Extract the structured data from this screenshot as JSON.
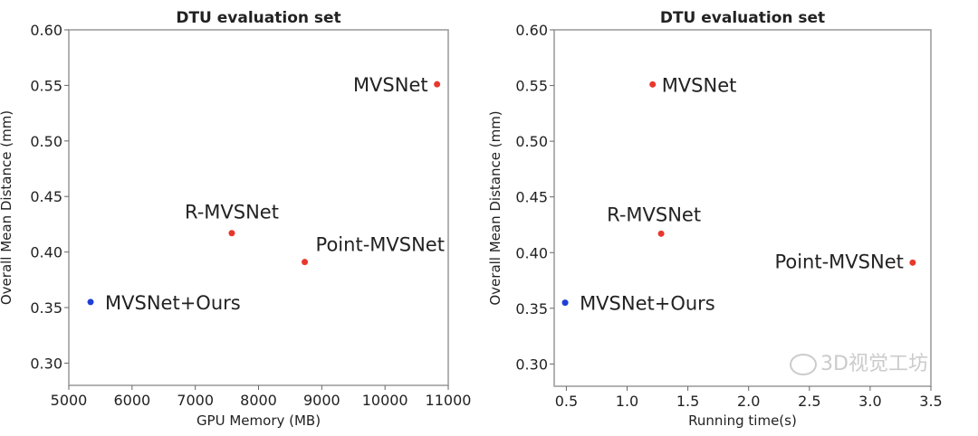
{
  "chart_data": [
    {
      "type": "scatter",
      "title": "DTU evaluation set",
      "xlabel": "GPU Memory (MB)",
      "ylabel": "Overall Mean Distance (mm)",
      "xlim": [
        5000,
        11000
      ],
      "ylim": [
        0.28,
        0.6
      ],
      "xticks": [
        "5000",
        "6000",
        "7000",
        "8000",
        "9000",
        "10000",
        "11000"
      ],
      "yticks": [
        "0.30",
        "0.35",
        "0.40",
        "0.45",
        "0.50",
        "0.55",
        "0.60"
      ],
      "grid": false,
      "points": [
        {
          "label": "MVSNet",
          "x": 10823,
          "y": 0.551,
          "color": "#e8372c"
        },
        {
          "label": "R-MVSNet",
          "x": 7577,
          "y": 0.417,
          "color": "#e8372c"
        },
        {
          "label": "Point-MVSNet",
          "x": 8731,
          "y": 0.391,
          "color": "#e8372c"
        },
        {
          "label": "MVSNet+Ours",
          "x": 5344,
          "y": 0.355,
          "color": "#1f3fd6"
        }
      ]
    },
    {
      "type": "scatter",
      "title": "DTU evaluation set",
      "xlabel": "Running time(s)",
      "ylabel": "Overall Mean Distance (mm)",
      "xlim": [
        0.4,
        3.5
      ],
      "ylim": [
        0.28,
        0.6
      ],
      "xticks": [
        "0.5",
        "1.0",
        "1.5",
        "2.0",
        "2.5",
        "3.0",
        "3.5"
      ],
      "yticks": [
        "0.30",
        "0.35",
        "0.40",
        "0.45",
        "0.50",
        "0.55",
        "0.60"
      ],
      "grid": false,
      "points": [
        {
          "label": "MVSNet",
          "x": 1.21,
          "y": 0.551,
          "color": "#e8372c"
        },
        {
          "label": "R-MVSNet",
          "x": 1.28,
          "y": 0.417,
          "color": "#e8372c"
        },
        {
          "label": "Point-MVSNet",
          "x": 3.35,
          "y": 0.391,
          "color": "#e8372c"
        },
        {
          "label": "MVSNet+Ours",
          "x": 0.49,
          "y": 0.355,
          "color": "#1f3fd6"
        }
      ]
    }
  ],
  "watermark": "3D视觉工坊"
}
